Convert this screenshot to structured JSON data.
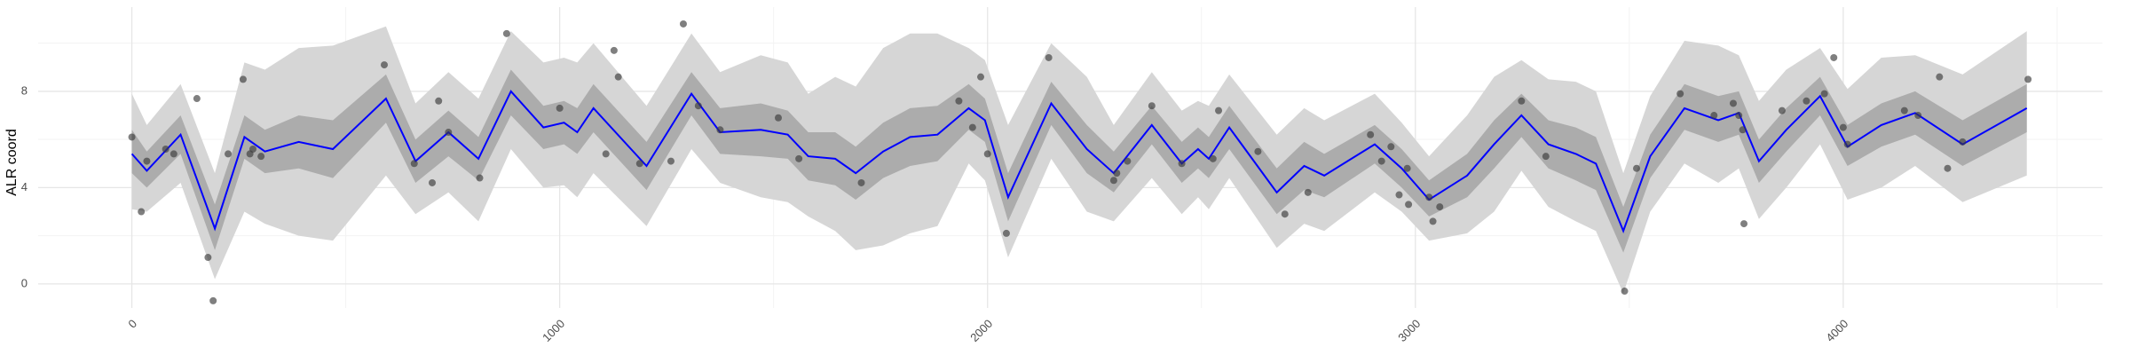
{
  "chart_data": {
    "type": "line",
    "y_label": "ALR coord",
    "xlim": [
      -219,
      4606
    ],
    "ylim": [
      -1.0,
      11.5
    ],
    "xticks": [
      0,
      1000,
      2000,
      3000,
      4000
    ],
    "yticks": [
      0,
      4,
      8
    ],
    "minor_xticks": [
      500,
      1500,
      2500,
      3500,
      4500
    ],
    "minor_yticks": [
      2,
      6,
      10
    ],
    "grid": true,
    "x": [
      0,
      35,
      114,
      194,
      263,
      311,
      390,
      470,
      594,
      663,
      740,
      810,
      886,
      962,
      1010,
      1041,
      1079,
      1203,
      1308,
      1375,
      1470,
      1533,
      1581,
      1644,
      1692,
      1756,
      1819,
      1883,
      1956,
      1994,
      2048,
      2149,
      2232,
      2295,
      2384,
      2454,
      2492,
      2517,
      2565,
      2676,
      2740,
      2787,
      2905,
      2968,
      3032,
      3121,
      3184,
      3248,
      3311,
      3375,
      3422,
      3486,
      3549,
      3629,
      3708,
      3756,
      3803,
      3867,
      3946,
      4010,
      4089,
      4168,
      4279,
      4429
    ],
    "mean": {
      "color": "#0000ff",
      "values": [
        5.4,
        4.7,
        6.2,
        2.3,
        6.1,
        5.5,
        5.9,
        5.6,
        7.7,
        5.1,
        6.3,
        5.2,
        8.0,
        6.5,
        6.7,
        6.3,
        7.3,
        4.9,
        7.9,
        6.3,
        6.4,
        6.2,
        5.3,
        5.2,
        4.6,
        5.5,
        6.1,
        6.2,
        7.3,
        6.8,
        3.6,
        7.5,
        5.6,
        4.6,
        6.6,
        5.0,
        5.6,
        5.2,
        6.5,
        3.8,
        4.9,
        4.5,
        5.8,
        4.8,
        3.5,
        4.5,
        5.8,
        7.0,
        5.8,
        5.4,
        5.0,
        2.2,
        5.3,
        7.3,
        6.8,
        7.1,
        5.1,
        6.4,
        7.8,
        5.7,
        6.6,
        7.1,
        5.8,
        7.3
      ]
    },
    "inner_band": {
      "color": "#acacac",
      "lower": [
        4.6,
        4.0,
        5.4,
        1.4,
        5.2,
        4.6,
        4.8,
        4.4,
        6.7,
        4.2,
        5.3,
        4.3,
        7.0,
        5.6,
        5.8,
        5.4,
        6.3,
        3.9,
        7.0,
        5.4,
        5.3,
        5.2,
        4.3,
        4.1,
        3.5,
        4.4,
        4.9,
        5.1,
        6.4,
        5.9,
        2.6,
        6.6,
        4.6,
        3.8,
        5.8,
        4.2,
        4.8,
        4.4,
        5.6,
        2.9,
        3.9,
        3.6,
        5.0,
        4.0,
        2.8,
        3.6,
        4.8,
        6.1,
        4.8,
        4.3,
        3.9,
        1.3,
        4.4,
        6.4,
        5.9,
        6.2,
        4.2,
        5.5,
        7.0,
        4.9,
        5.7,
        6.2,
        4.9,
        6.3
      ],
      "upper": [
        6.4,
        5.5,
        7.0,
        3.3,
        7.0,
        6.4,
        7.0,
        6.8,
        8.7,
        6.0,
        7.2,
        6.1,
        8.9,
        7.4,
        7.6,
        7.3,
        8.3,
        5.9,
        8.8,
        7.3,
        7.5,
        7.2,
        6.3,
        6.3,
        5.7,
        6.7,
        7.3,
        7.4,
        8.3,
        7.7,
        4.6,
        8.4,
        6.6,
        5.5,
        7.4,
        5.9,
        6.5,
        6.1,
        7.4,
        4.8,
        5.9,
        5.4,
        6.6,
        5.6,
        4.3,
        5.4,
        6.8,
        7.9,
        6.8,
        6.5,
        6.1,
        3.2,
        6.2,
        8.3,
        7.8,
        8.0,
        6.0,
        7.3,
        8.6,
        6.6,
        7.5,
        8.0,
        6.8,
        8.3
      ]
    },
    "outer_band": {
      "color": "#d6d6d6",
      "lower": [
        3.1,
        3.0,
        4.2,
        0.2,
        3.0,
        2.5,
        2.0,
        1.8,
        4.5,
        2.9,
        3.8,
        2.6,
        5.6,
        4.0,
        4.1,
        3.6,
        4.6,
        2.4,
        5.6,
        4.2,
        3.6,
        3.4,
        2.8,
        2.2,
        1.4,
        1.6,
        2.1,
        2.4,
        5.0,
        4.3,
        1.1,
        5.2,
        3.0,
        2.6,
        4.4,
        2.9,
        3.6,
        3.1,
        4.4,
        1.5,
        2.5,
        2.2,
        3.8,
        3.0,
        1.8,
        2.1,
        3.0,
        4.7,
        3.2,
        2.6,
        2.2,
        -0.4,
        3.0,
        5.0,
        4.2,
        4.8,
        2.7,
        4.0,
        5.8,
        3.5,
        4.0,
        4.9,
        3.4,
        4.5
      ],
      "upper": [
        7.9,
        6.6,
        8.3,
        4.6,
        9.2,
        8.9,
        9.8,
        9.9,
        10.7,
        7.5,
        8.8,
        7.7,
        10.5,
        9.2,
        9.4,
        9.2,
        10.0,
        7.4,
        10.4,
        8.8,
        9.5,
        9.2,
        7.9,
        8.6,
        8.2,
        9.8,
        10.4,
        10.4,
        9.8,
        9.3,
        6.6,
        10.0,
        8.6,
        6.6,
        8.8,
        7.2,
        7.6,
        7.4,
        8.7,
        6.2,
        7.3,
        6.8,
        7.9,
        6.7,
        5.3,
        7.0,
        8.6,
        9.3,
        8.5,
        8.4,
        8.0,
        4.6,
        7.8,
        10.1,
        9.9,
        9.5,
        7.6,
        8.9,
        9.8,
        8.1,
        9.4,
        9.5,
        8.7,
        10.5
      ]
    },
    "points": {
      "color": "#3a3a3a",
      "x": [
        0,
        22,
        35,
        79,
        98,
        152,
        178,
        190,
        225,
        260,
        276,
        283,
        302,
        590,
        660,
        702,
        717,
        740,
        813,
        876,
        1000,
        1108,
        1127,
        1137,
        1187,
        1260,
        1289,
        1324,
        1375,
        1511,
        1559,
        1705,
        1933,
        1965,
        1984,
        2000,
        2044,
        2143,
        2295,
        2302,
        2327,
        2384,
        2454,
        2527,
        2540,
        2632,
        2695,
        2749,
        2895,
        2921,
        2943,
        2962,
        2981,
        2984,
        3032,
        3041,
        3057,
        3248,
        3305,
        3489,
        3517,
        3619,
        3698,
        3743,
        3756,
        3765,
        3768,
        3857,
        3914,
        3956,
        3978,
        4000,
        4010,
        4143,
        4175,
        4225,
        4244,
        4279,
        4432
      ],
      "y": [
        6.1,
        3.0,
        5.1,
        5.6,
        5.4,
        7.7,
        1.1,
        -0.7,
        5.4,
        8.5,
        5.4,
        5.6,
        5.3,
        9.1,
        5.0,
        4.2,
        7.6,
        6.3,
        4.4,
        10.4,
        7.3,
        5.4,
        9.7,
        8.6,
        5.0,
        5.1,
        10.8,
        7.4,
        6.4,
        6.9,
        5.2,
        4.2,
        7.6,
        6.5,
        8.6,
        5.4,
        2.1,
        9.4,
        4.3,
        4.6,
        5.1,
        7.4,
        5.0,
        5.2,
        7.2,
        5.5,
        2.9,
        3.8,
        6.2,
        5.1,
        5.7,
        3.7,
        4.8,
        3.3,
        3.6,
        2.6,
        3.2,
        7.6,
        5.3,
        -0.3,
        4.8,
        7.9,
        7.0,
        7.5,
        7.0,
        6.4,
        2.5,
        7.2,
        7.6,
        7.9,
        9.4,
        6.5,
        5.8,
        7.2,
        7.0,
        8.6,
        4.8,
        5.9,
        8.5
      ]
    }
  }
}
